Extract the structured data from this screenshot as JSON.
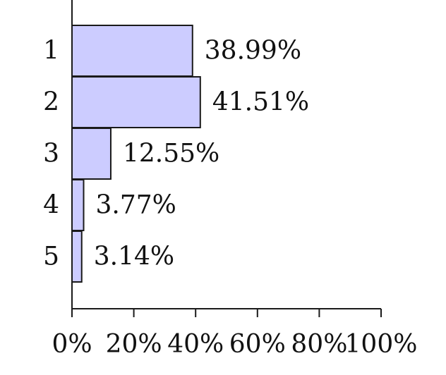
{
  "chart_data": {
    "type": "bar",
    "orientation": "horizontal",
    "categories": [
      "1",
      "2",
      "3",
      "4",
      "5"
    ],
    "values": [
      38.99,
      41.51,
      12.55,
      3.77,
      3.14
    ],
    "value_labels": [
      "38.99%",
      "41.51%",
      "12.55%",
      "3.77%",
      "3.14%"
    ],
    "xlim": [
      0,
      100
    ],
    "x_ticks": [
      0,
      20,
      40,
      60,
      80,
      100
    ],
    "x_tick_labels": [
      "0%",
      "20%",
      "40%",
      "60%",
      "80%",
      "100%"
    ],
    "title": "",
    "xlabel": "",
    "ylabel": "",
    "grid": false,
    "legend": "none",
    "colors": {
      "bar_fill": "#ccccff",
      "bar_stroke": "#1a1a1a",
      "text": "#111111"
    }
  }
}
